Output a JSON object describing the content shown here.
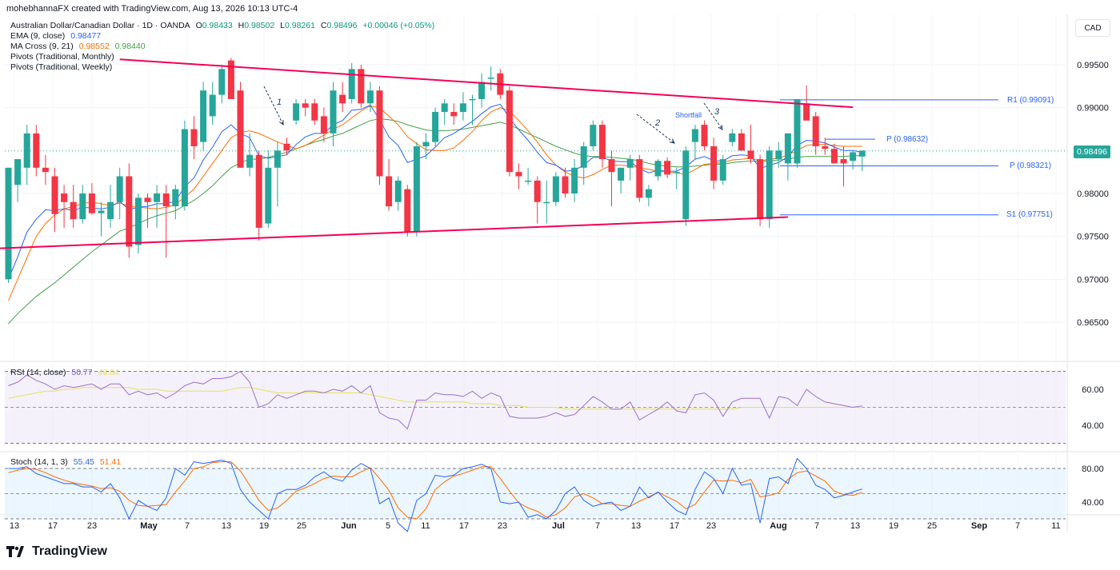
{
  "header": {
    "credit": "mohebhannaFX created with TradingView.com, Aug 13, 2026 10:13 UTC-4"
  },
  "instrument": {
    "name": "Australian Dollar/Canadian Dollar · 1D · OANDA",
    "O": "0.98433",
    "H": "0.98502",
    "L": "0.98261",
    "C": "0.98496",
    "change": "+0.00046 (+0.05%)"
  },
  "indicators": {
    "ema": {
      "label": "EMA (9, close)",
      "value": "0.98477"
    },
    "ma_cross": {
      "label": "MA Cross (9, 21)",
      "value1": "0.98552",
      "value2": "0.98440"
    },
    "pivots_monthly": "Pivots (Traditional, Monthly)",
    "pivots_weekly": "Pivots (Traditional, Weekly)",
    "rsi": {
      "label": "RSI (14, close)",
      "value1": "50.77",
      "value2": "49.84"
    },
    "stoch": {
      "label": "Stoch (14, 1, 3)",
      "value1": "55.45",
      "value2": "51.41"
    }
  },
  "currency_button": "CAD",
  "last_price": "0.98496",
  "pivot_labels": {
    "r1": "R1 (0.99091)",
    "p_monthly": "P (0.98321)",
    "p_weekly": "P (0.98632)",
    "s1": "S1 (0.97751)"
  },
  "annotations": {
    "wave1": "1",
    "wave2": "2",
    "wave3": "3",
    "shortfall": "Shortfall"
  },
  "brand": "TradingView",
  "colors": {
    "up": "#26a69a",
    "down": "#f23645",
    "ema": "#2962ff",
    "ma_fast": "#ff6d00",
    "ma_slow": "#43a047",
    "trendline": "#f50057",
    "pivot": "#2962ff",
    "rsi": "#9c6fd0",
    "rsi_ma": "#e8e05a",
    "stoch_k": "#2962ff",
    "stoch_d": "#ff6d00"
  },
  "chart_data": {
    "type": "candlestick",
    "price_axis": {
      "ticks": [
        "0.99500",
        "0.99000",
        "0.98000",
        "0.97500",
        "0.97000",
        "0.96500"
      ],
      "ylim": [
        0.9615,
        0.999
      ]
    },
    "x_ticks": [
      "13",
      "17",
      "23",
      "May",
      "7",
      "13",
      "19",
      "25",
      "Jun",
      "5",
      "11",
      "17",
      "23",
      "Jul",
      "7",
      "13",
      "17",
      "23",
      "Aug",
      "7",
      "13",
      "19",
      "25",
      "Sep",
      "7",
      "11"
    ],
    "rsi_axis": {
      "ticks": [
        "60.00",
        "40.00"
      ],
      "ylim": [
        20,
        75
      ],
      "band": [
        30,
        70
      ]
    },
    "stoch_axis": {
      "ticks": [
        "80.00",
        "40.00"
      ],
      "ylim": [
        -5,
        95
      ],
      "band": [
        20,
        80
      ]
    },
    "candles": [
      {
        "o": 0.97,
        "h": 0.983,
        "l": 0.9696,
        "c": 0.983
      },
      {
        "o": 0.981,
        "h": 0.984,
        "l": 0.979,
        "c": 0.984
      },
      {
        "o": 0.983,
        "h": 0.988,
        "l": 0.981,
        "c": 0.987
      },
      {
        "o": 0.987,
        "h": 0.988,
        "l": 0.982,
        "c": 0.983
      },
      {
        "o": 0.983,
        "h": 0.9845,
        "l": 0.981,
        "c": 0.9825
      },
      {
        "o": 0.982,
        "h": 0.983,
        "l": 0.9755,
        "c": 0.9776
      },
      {
        "o": 0.98,
        "h": 0.981,
        "l": 0.976,
        "c": 0.979
      },
      {
        "o": 0.979,
        "h": 0.981,
        "l": 0.976,
        "c": 0.977
      },
      {
        "o": 0.977,
        "h": 0.981,
        "l": 0.9765,
        "c": 0.98
      },
      {
        "o": 0.98,
        "h": 0.9812,
        "l": 0.9775,
        "c": 0.9777
      },
      {
        "o": 0.9777,
        "h": 0.979,
        "l": 0.975,
        "c": 0.978
      },
      {
        "o": 0.977,
        "h": 0.981,
        "l": 0.976,
        "c": 0.979
      },
      {
        "o": 0.979,
        "h": 0.983,
        "l": 0.977,
        "c": 0.982
      },
      {
        "o": 0.982,
        "h": 0.9835,
        "l": 0.9725,
        "c": 0.9738
      },
      {
        "o": 0.974,
        "h": 0.98,
        "l": 0.973,
        "c": 0.9795
      },
      {
        "o": 0.9795,
        "h": 0.98,
        "l": 0.976,
        "c": 0.979
      },
      {
        "o": 0.979,
        "h": 0.981,
        "l": 0.976,
        "c": 0.98
      },
      {
        "o": 0.98,
        "h": 0.981,
        "l": 0.9725,
        "c": 0.9785
      },
      {
        "o": 0.9785,
        "h": 0.981,
        "l": 0.977,
        "c": 0.9805
      },
      {
        "o": 0.9785,
        "h": 0.9885,
        "l": 0.978,
        "c": 0.9875
      },
      {
        "o": 0.9875,
        "h": 0.989,
        "l": 0.984,
        "c": 0.9855
      },
      {
        "o": 0.986,
        "h": 0.993,
        "l": 0.985,
        "c": 0.992
      },
      {
        "o": 0.989,
        "h": 0.993,
        "l": 0.988,
        "c": 0.9915
      },
      {
        "o": 0.9915,
        "h": 0.995,
        "l": 0.9905,
        "c": 0.9945
      },
      {
        "o": 0.9955,
        "h": 0.9958,
        "l": 0.991,
        "c": 0.991
      },
      {
        "o": 0.992,
        "h": 0.993,
        "l": 0.983,
        "c": 0.983
      },
      {
        "o": 0.983,
        "h": 0.987,
        "l": 0.982,
        "c": 0.9845
      },
      {
        "o": 0.9845,
        "h": 0.985,
        "l": 0.9745,
        "c": 0.976
      },
      {
        "o": 0.9765,
        "h": 0.985,
        "l": 0.976,
        "c": 0.983
      },
      {
        "o": 0.983,
        "h": 0.986,
        "l": 0.9785,
        "c": 0.985
      },
      {
        "o": 0.9858,
        "h": 0.9865,
        "l": 0.9845,
        "c": 0.985
      },
      {
        "o": 0.9885,
        "h": 0.991,
        "l": 0.988,
        "c": 0.9905
      },
      {
        "o": 0.9905,
        "h": 0.991,
        "l": 0.989,
        "c": 0.99
      },
      {
        "o": 0.9905,
        "h": 0.991,
        "l": 0.988,
        "c": 0.9885
      },
      {
        "o": 0.989,
        "h": 0.99,
        "l": 0.986,
        "c": 0.987
      },
      {
        "o": 0.987,
        "h": 0.993,
        "l": 0.9855,
        "c": 0.992
      },
      {
        "o": 0.9915,
        "h": 0.993,
        "l": 0.9895,
        "c": 0.9905
      },
      {
        "o": 0.991,
        "h": 0.9952,
        "l": 0.9905,
        "c": 0.9945
      },
      {
        "o": 0.9945,
        "h": 0.995,
        "l": 0.99,
        "c": 0.9905
      },
      {
        "o": 0.9905,
        "h": 0.993,
        "l": 0.9895,
        "c": 0.992
      },
      {
        "o": 0.992,
        "h": 0.9925,
        "l": 0.981,
        "c": 0.982
      },
      {
        "o": 0.982,
        "h": 0.984,
        "l": 0.978,
        "c": 0.9785
      },
      {
        "o": 0.979,
        "h": 0.982,
        "l": 0.978,
        "c": 0.9815
      },
      {
        "o": 0.9805,
        "h": 0.981,
        "l": 0.975,
        "c": 0.9755
      },
      {
        "o": 0.9755,
        "h": 0.986,
        "l": 0.975,
        "c": 0.9855
      },
      {
        "o": 0.9855,
        "h": 0.987,
        "l": 0.984,
        "c": 0.986
      },
      {
        "o": 0.986,
        "h": 0.99,
        "l": 0.9855,
        "c": 0.9895
      },
      {
        "o": 0.9895,
        "h": 0.991,
        "l": 0.988,
        "c": 0.9905
      },
      {
        "o": 0.9895,
        "h": 0.9905,
        "l": 0.988,
        "c": 0.989
      },
      {
        "o": 0.9895,
        "h": 0.9918,
        "l": 0.9885,
        "c": 0.9905
      },
      {
        "o": 0.991,
        "h": 0.9915,
        "l": 0.988,
        "c": 0.991
      },
      {
        "o": 0.991,
        "h": 0.994,
        "l": 0.99,
        "c": 0.993
      },
      {
        "o": 0.9935,
        "h": 0.9948,
        "l": 0.992,
        "c": 0.9935
      },
      {
        "o": 0.994,
        "h": 0.9945,
        "l": 0.991,
        "c": 0.9915
      },
      {
        "o": 0.992,
        "h": 0.9925,
        "l": 0.982,
        "c": 0.9825
      },
      {
        "o": 0.9825,
        "h": 0.9835,
        "l": 0.9805,
        "c": 0.982
      },
      {
        "o": 0.9815,
        "h": 0.983,
        "l": 0.981,
        "c": 0.9815
      },
      {
        "o": 0.9815,
        "h": 0.982,
        "l": 0.9765,
        "c": 0.979
      },
      {
        "o": 0.979,
        "h": 0.9815,
        "l": 0.9765,
        "c": 0.979
      },
      {
        "o": 0.979,
        "h": 0.9825,
        "l": 0.9785,
        "c": 0.982
      },
      {
        "o": 0.982,
        "h": 0.983,
        "l": 0.9795,
        "c": 0.98
      },
      {
        "o": 0.98,
        "h": 0.984,
        "l": 0.979,
        "c": 0.983
      },
      {
        "o": 0.983,
        "h": 0.986,
        "l": 0.981,
        "c": 0.9855
      },
      {
        "o": 0.9855,
        "h": 0.9885,
        "l": 0.985,
        "c": 0.988
      },
      {
        "o": 0.988,
        "h": 0.9885,
        "l": 0.983,
        "c": 0.984
      },
      {
        "o": 0.984,
        "h": 0.985,
        "l": 0.9785,
        "c": 0.9825
      },
      {
        "o": 0.9815,
        "h": 0.983,
        "l": 0.98,
        "c": 0.983
      },
      {
        "o": 0.983,
        "h": 0.9845,
        "l": 0.9815,
        "c": 0.984
      },
      {
        "o": 0.984,
        "h": 0.9845,
        "l": 0.979,
        "c": 0.9795
      },
      {
        "o": 0.9795,
        "h": 0.981,
        "l": 0.9785,
        "c": 0.9805
      },
      {
        "o": 0.982,
        "h": 0.984,
        "l": 0.9815,
        "c": 0.9838
      },
      {
        "o": 0.9838,
        "h": 0.9842,
        "l": 0.9818,
        "c": 0.9822
      },
      {
        "o": 0.9825,
        "h": 0.983,
        "l": 0.9805,
        "c": 0.9825
      },
      {
        "o": 0.977,
        "h": 0.9855,
        "l": 0.9762,
        "c": 0.985
      },
      {
        "o": 0.986,
        "h": 0.988,
        "l": 0.984,
        "c": 0.9875
      },
      {
        "o": 0.988,
        "h": 0.9885,
        "l": 0.985,
        "c": 0.9855
      },
      {
        "o": 0.9855,
        "h": 0.9865,
        "l": 0.9805,
        "c": 0.9815
      },
      {
        "o": 0.9815,
        "h": 0.9845,
        "l": 0.981,
        "c": 0.984
      },
      {
        "o": 0.986,
        "h": 0.9875,
        "l": 0.9855,
        "c": 0.987
      },
      {
        "o": 0.987,
        "h": 0.9875,
        "l": 0.985,
        "c": 0.985
      },
      {
        "o": 0.985,
        "h": 0.988,
        "l": 0.9835,
        "c": 0.984
      },
      {
        "o": 0.984,
        "h": 0.9845,
        "l": 0.9762,
        "c": 0.977
      },
      {
        "o": 0.977,
        "h": 0.9855,
        "l": 0.976,
        "c": 0.985
      },
      {
        "o": 0.984,
        "h": 0.986,
        "l": 0.983,
        "c": 0.985
      },
      {
        "o": 0.9835,
        "h": 0.987,
        "l": 0.9815,
        "c": 0.987
      },
      {
        "o": 0.9835,
        "h": 0.991,
        "l": 0.983,
        "c": 0.991
      },
      {
        "o": 0.9905,
        "h": 0.9926,
        "l": 0.9885,
        "c": 0.9885
      },
      {
        "o": 0.989,
        "h": 0.9895,
        "l": 0.9845,
        "c": 0.9855
      },
      {
        "o": 0.9855,
        "h": 0.9865,
        "l": 0.9845,
        "c": 0.9852
      },
      {
        "o": 0.9852,
        "h": 0.9858,
        "l": 0.9835,
        "c": 0.9835
      },
      {
        "o": 0.984,
        "h": 0.9855,
        "l": 0.9808,
        "c": 0.9835
      },
      {
        "o": 0.9838,
        "h": 0.985,
        "l": 0.9828,
        "c": 0.9848
      },
      {
        "o": 0.9843,
        "h": 0.985,
        "l": 0.9826,
        "c": 0.985
      }
    ],
    "rsi": [
      62,
      64,
      68,
      65,
      63,
      60,
      62,
      61,
      62,
      63,
      60,
      63,
      63,
      57,
      59,
      57,
      58,
      55,
      58,
      62,
      64,
      63,
      66,
      66,
      67,
      70,
      64,
      50,
      52,
      57,
      55,
      57,
      59,
      59,
      58,
      60,
      59,
      62,
      58,
      62,
      47,
      44,
      43,
      38,
      54,
      54,
      58,
      57,
      57,
      56,
      59,
      55,
      58,
      56,
      45,
      44,
      44,
      44,
      45,
      47,
      45,
      46,
      51,
      56,
      53,
      49,
      49,
      53,
      43,
      46,
      49,
      53,
      48,
      47,
      57,
      58,
      54,
      45,
      53,
      55,
      55,
      55,
      44,
      56,
      55,
      51,
      60,
      56,
      53,
      52,
      51,
      50,
      50.8
    ],
    "rsi_ma": [
      55,
      56,
      57,
      58,
      59,
      59,
      60,
      60,
      61,
      61,
      61,
      61,
      61,
      61,
      60,
      60,
      60,
      59,
      59,
      59,
      59,
      59,
      59,
      59,
      60,
      61,
      61,
      60,
      59,
      58,
      58,
      58,
      58,
      58,
      58,
      58,
      58,
      58,
      58,
      57,
      56,
      55,
      54,
      53,
      53,
      53,
      53,
      53,
      53,
      53,
      52,
      52,
      52,
      51,
      51,
      51,
      50,
      50,
      50,
      50,
      49,
      49,
      49,
      49,
      49,
      49,
      49,
      49,
      49,
      49,
      49,
      49,
      49,
      49,
      49,
      49,
      49,
      49,
      49,
      50,
      50,
      50,
      50,
      50,
      50,
      50,
      50,
      50,
      50,
      50,
      50,
      50,
      49.8
    ],
    "stoch_k": [
      80,
      80,
      82,
      74,
      70,
      66,
      62,
      62,
      58,
      58,
      52,
      62,
      45,
      20,
      42,
      35,
      30,
      45,
      80,
      72,
      88,
      86,
      88,
      90,
      86,
      55,
      40,
      30,
      20,
      50,
      55,
      55,
      60,
      70,
      76,
      68,
      65,
      78,
      86,
      80,
      38,
      45,
      15,
      5,
      42,
      50,
      72,
      70,
      72,
      80,
      82,
      85,
      80,
      40,
      38,
      40,
      22,
      25,
      20,
      30,
      50,
      58,
      42,
      35,
      38,
      40,
      30,
      35,
      58,
      45,
      52,
      40,
      30,
      25,
      55,
      76,
      68,
      50,
      80,
      60,
      62,
      15,
      68,
      70,
      62,
      92,
      80,
      60,
      55,
      45,
      48,
      52,
      55.5
    ],
    "stoch_d": [
      75,
      78,
      80,
      79,
      75,
      70,
      66,
      63,
      61,
      59,
      56,
      57,
      53,
      42,
      36,
      35,
      36,
      37,
      52,
      65,
      80,
      82,
      87,
      88,
      88,
      77,
      60,
      42,
      30,
      33,
      42,
      53,
      57,
      62,
      68,
      71,
      70,
      70,
      76,
      81,
      68,
      54,
      33,
      22,
      20,
      32,
      55,
      64,
      71,
      74,
      78,
      82,
      82,
      68,
      53,
      39,
      33,
      29,
      22,
      25,
      33,
      46,
      50,
      45,
      38,
      38,
      36,
      35,
      41,
      46,
      52,
      46,
      41,
      32,
      37,
      52,
      66,
      65,
      66,
      63,
      67,
      46,
      48,
      51,
      67,
      75,
      77,
      71,
      65,
      53,
      49,
      48,
      51.4
    ],
    "ema_values": [
      0.97,
      0.9726,
      0.9755,
      0.977,
      0.9781,
      0.978,
      0.9782,
      0.978,
      0.9784,
      0.9783,
      0.9782,
      0.9784,
      0.9791,
      0.9781,
      0.9784,
      0.9785,
      0.9788,
      0.9788,
      0.9791,
      0.9808,
      0.9818,
      0.9839,
      0.9854,
      0.9872,
      0.988,
      0.987,
      0.9865,
      0.9844,
      0.9841,
      0.9843,
      0.9845,
      0.9857,
      0.9866,
      0.987,
      0.987,
      0.988,
      0.9885,
      0.9897,
      0.9898,
      0.9903,
      0.9886,
      0.9866,
      0.9856,
      0.9836,
      0.984,
      0.9844,
      0.9854,
      0.9865,
      0.987,
      0.9877,
      0.9884,
      0.9893,
      0.9901,
      0.9904,
      0.9888,
      0.9874,
      0.9862,
      0.9848,
      0.9836,
      0.9833,
      0.9826,
      0.9827,
      0.9833,
      0.9842,
      0.9842,
      0.9838,
      0.9837,
      0.9837,
      0.9829,
      0.9824,
      0.9827,
      0.9826,
      0.9826,
      0.9831,
      0.984,
      0.9843,
      0.9838,
      0.9838,
      0.9844,
      0.9845,
      0.9844,
      0.9829,
      0.9833,
      0.9836,
      0.9843,
      0.9856,
      0.9862,
      0.9861,
      0.9859,
      0.9854,
      0.985,
      0.985,
      0.9848
    ],
    "ma_fast_values": [
      0.9675,
      0.97,
      0.9725,
      0.975,
      0.9765,
      0.9775,
      0.9782,
      0.9785,
      0.9788,
      0.979,
      0.9788,
      0.9786,
      0.9789,
      0.9785,
      0.9784,
      0.9783,
      0.9782,
      0.9784,
      0.9787,
      0.9796,
      0.9805,
      0.982,
      0.9835,
      0.985,
      0.9865,
      0.9871,
      0.9873,
      0.987,
      0.9865,
      0.986,
      0.9856,
      0.9852,
      0.9856,
      0.9862,
      0.9868,
      0.9875,
      0.988,
      0.9888,
      0.9896,
      0.9902,
      0.99,
      0.989,
      0.988,
      0.9866,
      0.9858,
      0.9851,
      0.985,
      0.985,
      0.9853,
      0.9862,
      0.9872,
      0.9885,
      0.9895,
      0.99,
      0.9896,
      0.9885,
      0.9873,
      0.986,
      0.9845,
      0.9833,
      0.9825,
      0.982,
      0.9818,
      0.9822,
      0.9828,
      0.9833,
      0.9833,
      0.9832,
      0.983,
      0.9828,
      0.9826,
      0.9825,
      0.9824,
      0.9822,
      0.9828,
      0.9834,
      0.9835,
      0.9836,
      0.9839,
      0.984,
      0.9841,
      0.9838,
      0.984,
      0.9841,
      0.9845,
      0.985,
      0.9856,
      0.9857,
      0.9857,
      0.9856,
      0.9855,
      0.9855,
      0.9855
    ],
    "ma_slow_values": [
      0.9648,
      0.966,
      0.967,
      0.968,
      0.9688,
      0.9696,
      0.9705,
      0.9714,
      0.9723,
      0.9732,
      0.974,
      0.9748,
      0.9756,
      0.976,
      0.9765,
      0.977,
      0.9774,
      0.9777,
      0.978,
      0.9786,
      0.9792,
      0.98,
      0.9809,
      0.982,
      0.983,
      0.9836,
      0.984,
      0.984,
      0.9842,
      0.9845,
      0.9848,
      0.9852,
      0.9856,
      0.986,
      0.9863,
      0.9867,
      0.987,
      0.9875,
      0.988,
      0.9885,
      0.9887,
      0.9886,
      0.9884,
      0.988,
      0.9877,
      0.9874,
      0.9873,
      0.9873,
      0.9874,
      0.9875,
      0.9877,
      0.9879,
      0.9881,
      0.9883,
      0.988,
      0.9875,
      0.987,
      0.9865,
      0.986,
      0.9855,
      0.9851,
      0.9847,
      0.9844,
      0.9843,
      0.9843,
      0.9842,
      0.9841,
      0.984,
      0.9838,
      0.9835,
      0.9833,
      0.9832,
      0.9831,
      0.9831,
      0.9832,
      0.9833,
      0.9834,
      0.9834,
      0.9836,
      0.9837,
      0.9838,
      0.9837,
      0.9838,
      0.9839,
      0.984,
      0.9842,
      0.9843,
      0.9843,
      0.9843,
      0.9843,
      0.9843,
      0.9844,
      0.9844
    ],
    "trendlines": [
      {
        "from": {
          "bar": 12,
          "price": 0.99563
        },
        "to": {
          "bar": 91,
          "price": 0.99005
        }
      },
      {
        "from": {
          "bar": -7,
          "price": 0.97335
        },
        "to": {
          "bar": 84,
          "price": 0.97725
        }
      }
    ],
    "pivots": [
      {
        "label": "R1",
        "price": 0.99091
      },
      {
        "label": "P",
        "price": 0.98321
      },
      {
        "label": "P",
        "price": 0.98632
      },
      {
        "label": "S1",
        "price": 0.97751
      }
    ]
  }
}
